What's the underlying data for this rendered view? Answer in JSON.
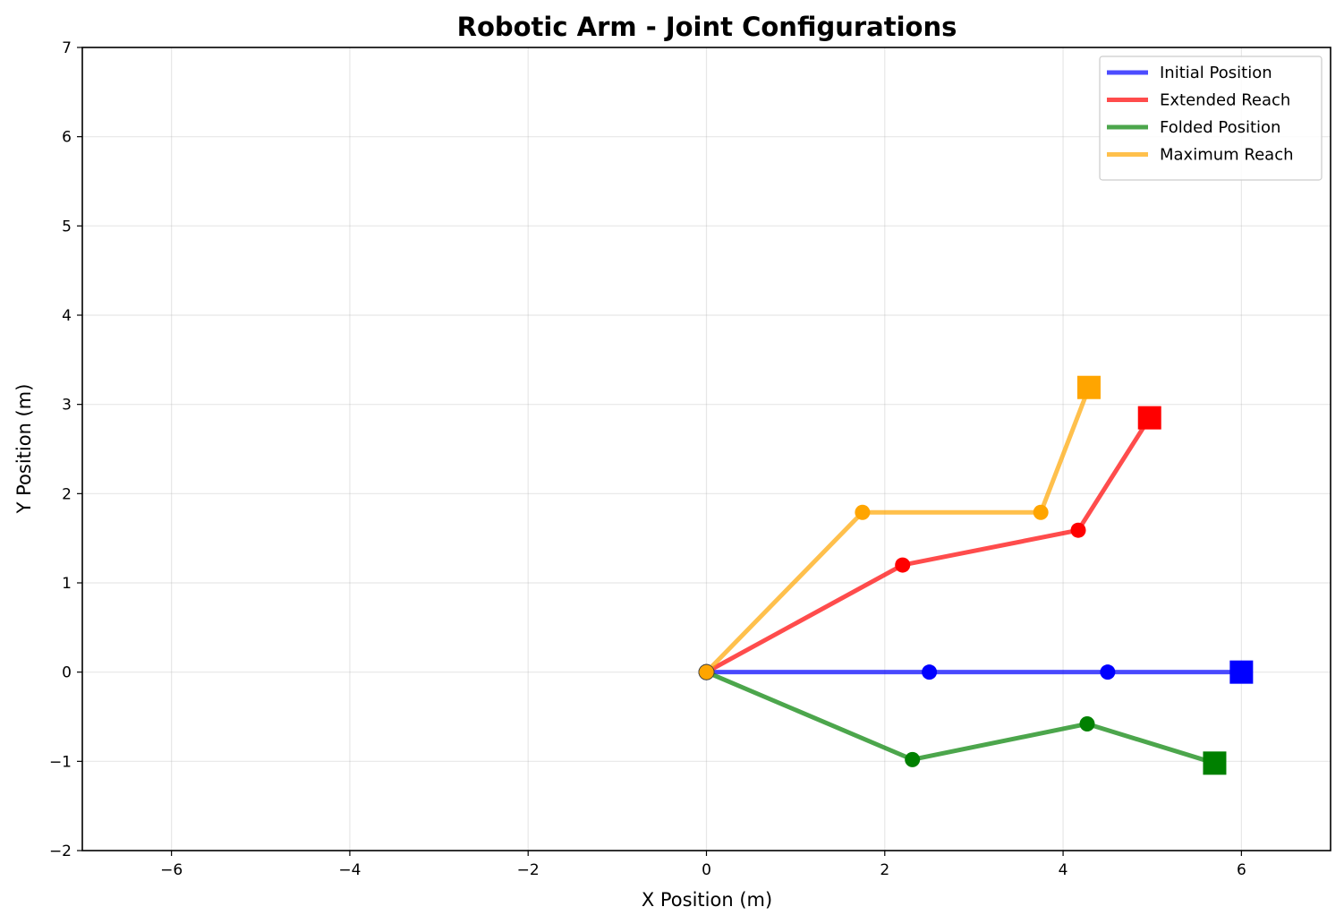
{
  "chart_data": {
    "type": "line",
    "title": "Robotic Arm - Joint Configurations",
    "xlabel": "X Position (m)",
    "ylabel": "Y Position (m)",
    "xlim": [
      -7,
      7
    ],
    "ylim": [
      -2,
      7
    ],
    "xticks": [
      -6,
      -4,
      -2,
      0,
      2,
      4,
      6
    ],
    "xtick_labels": [
      "−6",
      "−4",
      "−2",
      "0",
      "2",
      "4",
      "6"
    ],
    "yticks": [
      -2,
      -1,
      0,
      1,
      2,
      3,
      4,
      5,
      6,
      7
    ],
    "ytick_labels": [
      "−2",
      "−1",
      "0",
      "1",
      "2",
      "3",
      "4",
      "5",
      "6",
      "7"
    ],
    "grid": true,
    "legend_position": "top-right",
    "series": [
      {
        "name": "Initial Position",
        "color": "#0000ff",
        "points": [
          [
            0,
            0
          ],
          [
            2.5,
            0
          ],
          [
            4.5,
            0
          ],
          [
            6.0,
            0
          ]
        ]
      },
      {
        "name": "Extended Reach",
        "color": "#ff0000",
        "points": [
          [
            0,
            0
          ],
          [
            2.2,
            1.2
          ],
          [
            4.17,
            1.59
          ],
          [
            4.97,
            2.85
          ]
        ]
      },
      {
        "name": "Folded Position",
        "color": "#008000",
        "points": [
          [
            0,
            0
          ],
          [
            2.31,
            -0.98
          ],
          [
            4.27,
            -0.58
          ],
          [
            5.7,
            -1.02
          ]
        ]
      },
      {
        "name": "Maximum Reach",
        "color": "#ffa500",
        "points": [
          [
            0,
            0
          ],
          [
            1.75,
            1.79
          ],
          [
            3.75,
            1.79
          ],
          [
            4.29,
            3.19
          ]
        ]
      }
    ]
  }
}
